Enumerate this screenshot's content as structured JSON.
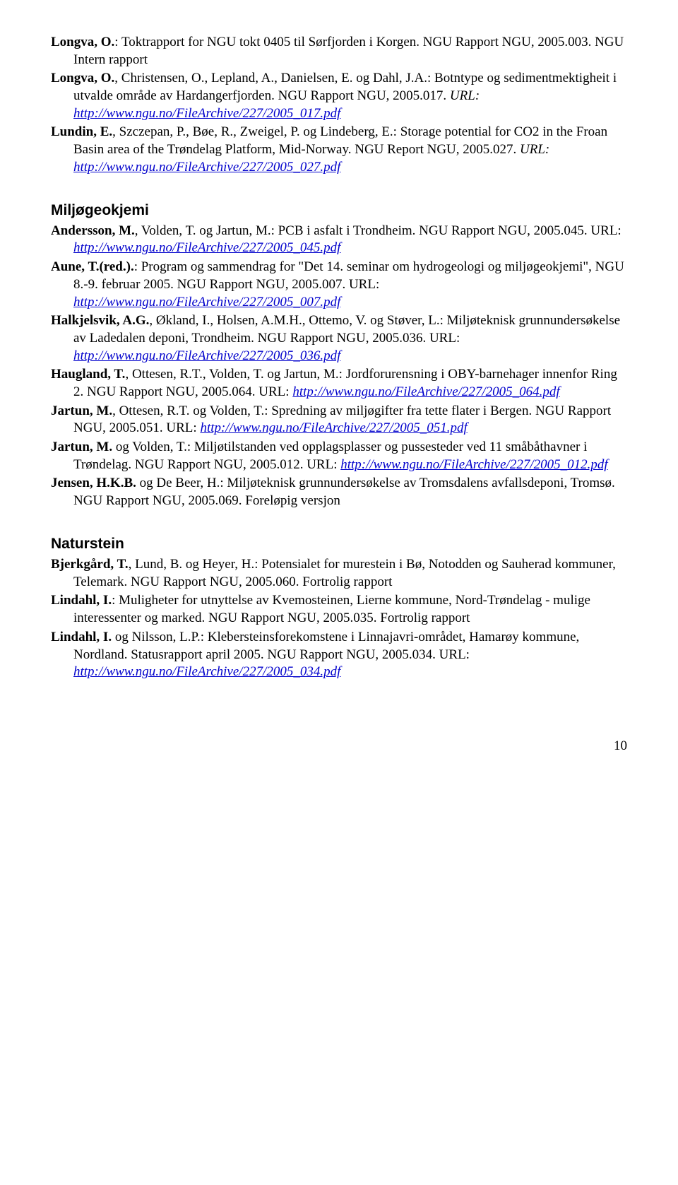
{
  "top_entries": [
    {
      "authors_bold": "Longva, O.",
      "rest": ": Toktrapport for NGU tokt 0405 til Sørfjorden i Korgen. NGU Rapport NGU, 2005.003. NGU Intern rapport"
    },
    {
      "authors_bold": "Longva, O.",
      "rest": ", Christensen, O., Lepland, A., Danielsen, E. og Dahl, J.A.: Botntype og sedimentmektigheit i utvalde område av Hardangerfjorden. NGU Rapport NGU, 2005.017. ",
      "url_label": "URL: ",
      "url": "http://www.ngu.no/FileArchive/227/2005_017.pdf"
    },
    {
      "authors_bold": "Lundin, E.",
      "rest": ", Szczepan, P., Bøe, R., Zweigel, P. og Lindeberg, E.: Storage potential for CO2 in the Froan Basin area of the Trøndelag Platform, Mid-Norway. NGU Report NGU, 2005.027. ",
      "url_label": "URL: ",
      "url": "http://www.ngu.no/FileArchive/227/2005_027.pdf"
    }
  ],
  "section1": {
    "heading": "Miljøgeokjemi",
    "entries": [
      {
        "authors_bold": "Andersson, M.",
        "rest": ", Volden, T. og Jartun, M.: PCB i asfalt i Trondheim. NGU Rapport NGU, 2005.045. URL: ",
        "url": "http://www.ngu.no/FileArchive/227/2005_045.pdf"
      },
      {
        "authors_bold": "Aune, T.(red.).",
        "rest": ": Program og sammendrag for \"Det 14. seminar om hydrogeologi og miljøgeokjemi\", NGU 8.-9. februar 2005. NGU Rapport NGU, 2005.007. URL: ",
        "url": "http://www.ngu.no/FileArchive/227/2005_007.pdf"
      },
      {
        "authors_bold": "Halkjelsvik, A.G.",
        "rest": ", Økland, I., Holsen, A.M.H., Ottemo, V. og Støver, L.: Miljøteknisk grunnundersøkelse av Ladedalen deponi, Trondheim. NGU Rapport NGU, 2005.036. URL: ",
        "url": "http://www.ngu.no/FileArchive/227/2005_036.pdf"
      },
      {
        "authors_bold": "Haugland, T.",
        "rest": ", Ottesen, R.T., Volden, T. og Jartun, M.: Jordforurensning i OBY-barnehager innenfor Ring 2. NGU Rapport NGU, 2005.064. URL: ",
        "url": "http://www.ngu.no/FileArchive/227/2005_064.pdf"
      },
      {
        "authors_bold": "Jartun, M.",
        "rest": ", Ottesen, R.T. og Volden, T.: Spredning av miljøgifter fra tette flater i Bergen. NGU Rapport NGU, 2005.051. URL: ",
        "url": "http://www.ngu.no/FileArchive/227/2005_051.pdf"
      },
      {
        "authors_bold": "Jartun, M.",
        "rest": " og Volden, T.: Miljøtilstanden ved opplagsplasser og pussesteder ved 11 småbåthavner i Trøndelag. NGU Rapport NGU, 2005.012. URL: ",
        "url": "http://www.ngu.no/FileArchive/227/2005_012.pdf"
      },
      {
        "authors_bold": "Jensen, H.K.B.",
        "rest": " og De Beer, H.: Miljøteknisk grunnundersøkelse av Tromsdalens avfallsdeponi, Tromsø. NGU Rapport NGU, 2005.069. Foreløpig versjon"
      }
    ]
  },
  "section2": {
    "heading": "Naturstein",
    "entries": [
      {
        "authors_bold": "Bjerkgård, T.",
        "rest": ", Lund, B. og Heyer, H.: Potensialet for murestein i Bø, Notodden og Sauherad kommuner, Telemark. NGU Rapport NGU, 2005.060. Fortrolig rapport"
      },
      {
        "authors_bold": "Lindahl, I.",
        "rest": ": Muligheter for utnyttelse av Kvemosteinen, Lierne kommune, Nord-Trøndelag - mulige interessenter og marked. NGU Rapport NGU, 2005.035. Fortrolig rapport"
      },
      {
        "authors_bold": "Lindahl, I.",
        "rest": " og Nilsson, L.P.: Klebersteinsforekomstene i Linnajavri-området, Hamarøy kommune, Nordland. Statusrapport april 2005. NGU Rapport NGU, 2005.034. URL: ",
        "url": "http://www.ngu.no/FileArchive/227/2005_034.pdf"
      }
    ]
  },
  "page_number": "10"
}
